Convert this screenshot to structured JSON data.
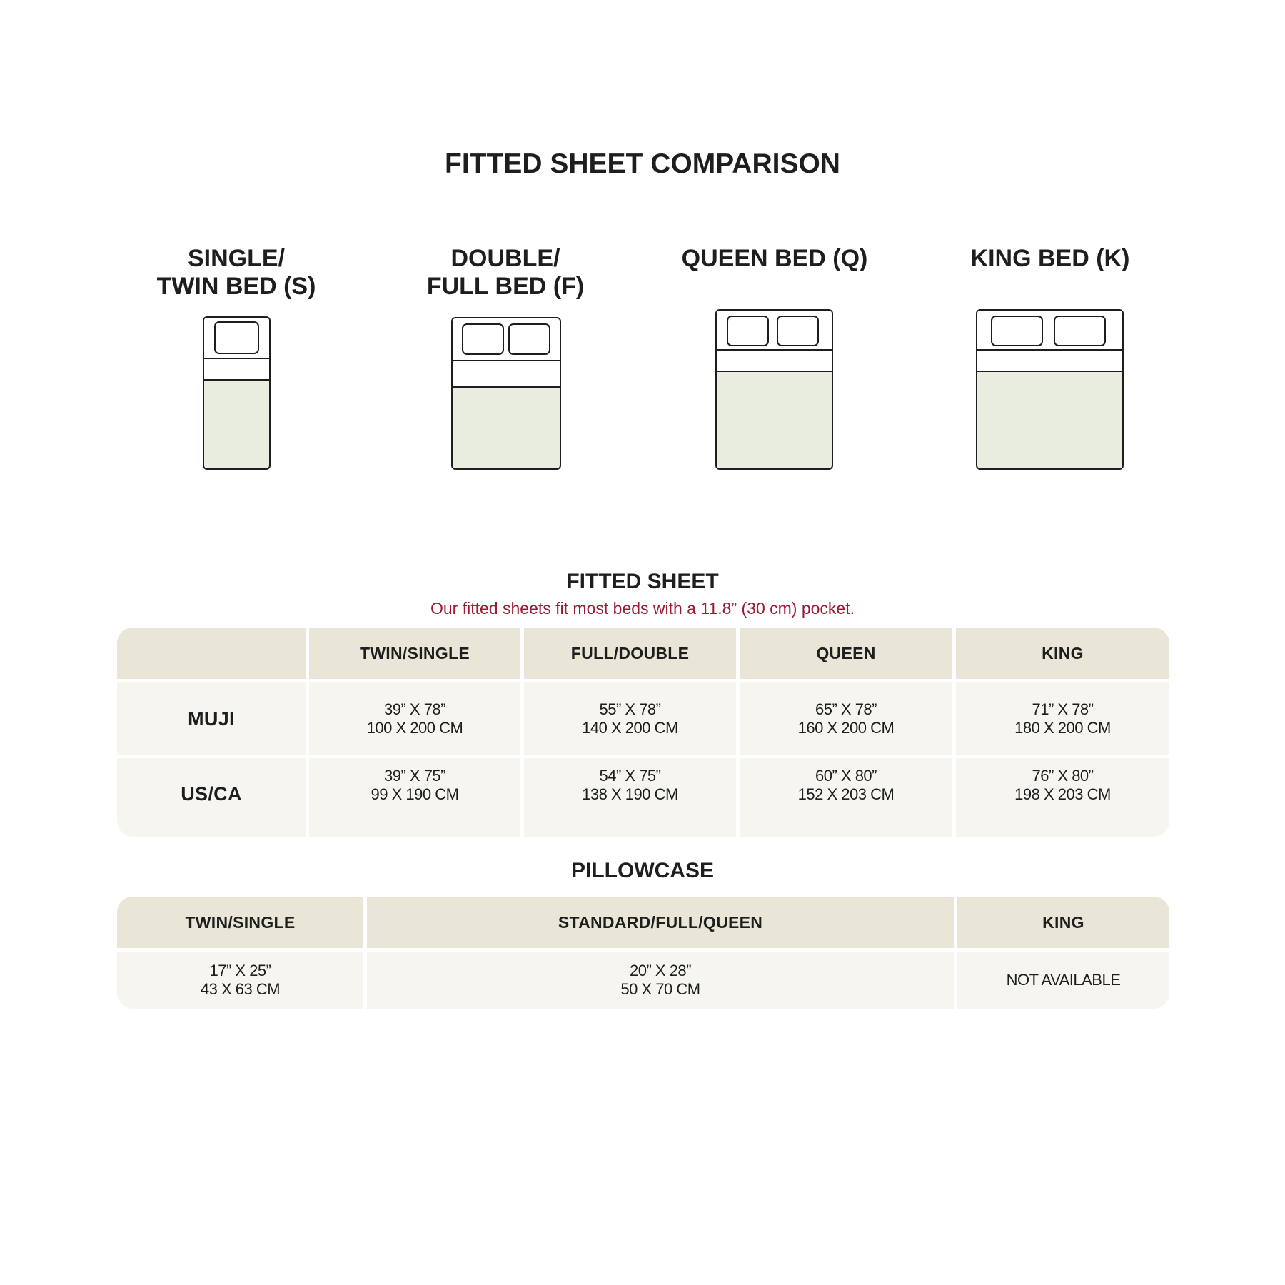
{
  "title": "FITTED SHEET COMPARISON",
  "beds": [
    {
      "line1": "SINGLE/",
      "line2": "TWIN BED (S)",
      "pillows": 1
    },
    {
      "line1": "DOUBLE/",
      "line2": "FULL BED (F)",
      "pillows": 2
    },
    {
      "line1": "QUEEN BED (Q)",
      "line2": "",
      "pillows": 2
    },
    {
      "line1": "KING BED (K)",
      "line2": "",
      "pillows": 2
    }
  ],
  "colors": {
    "header": "#e9e6d7",
    "body": "#f6f5ef",
    "sheet": "#e9ede0",
    "note": "#9a1b32"
  },
  "fitted_sheet": {
    "title": "FITTED SHEET",
    "note": "Our fitted sheets fit most beds with a 11.8” (30 cm) pocket.",
    "headers": [
      "",
      "TWIN/SINGLE",
      "FULL/DOUBLE",
      "QUEEN",
      "KING"
    ],
    "rows": [
      {
        "label": "MUJI",
        "cells": [
          [
            "39” X 78”",
            "100 X 200 CM"
          ],
          [
            "55” X 78”",
            "140 X 200 CM"
          ],
          [
            "65” X 78”",
            "160 X 200 CM"
          ],
          [
            "71” X 78”",
            "180 X 200 CM"
          ]
        ]
      },
      {
        "label": "US/CA",
        "cells": [
          [
            "39” X 75”",
            "99 X 190 CM"
          ],
          [
            "54” X 75”",
            "138 X 190 CM"
          ],
          [
            "60” X 80”",
            "152 X 203 CM"
          ],
          [
            "76” X 80”",
            "198 X 203 CM"
          ]
        ]
      }
    ]
  },
  "pillowcase": {
    "title": "PILLOWCASE",
    "headers": [
      "TWIN/SINGLE",
      "STANDARD/FULL/QUEEN",
      "KING"
    ],
    "cells": [
      [
        "17” X 25”",
        "43 X 63 CM"
      ],
      [
        "20” X 28”",
        "50 X 70 CM"
      ],
      [
        "NOT AVAILABLE",
        ""
      ]
    ]
  }
}
